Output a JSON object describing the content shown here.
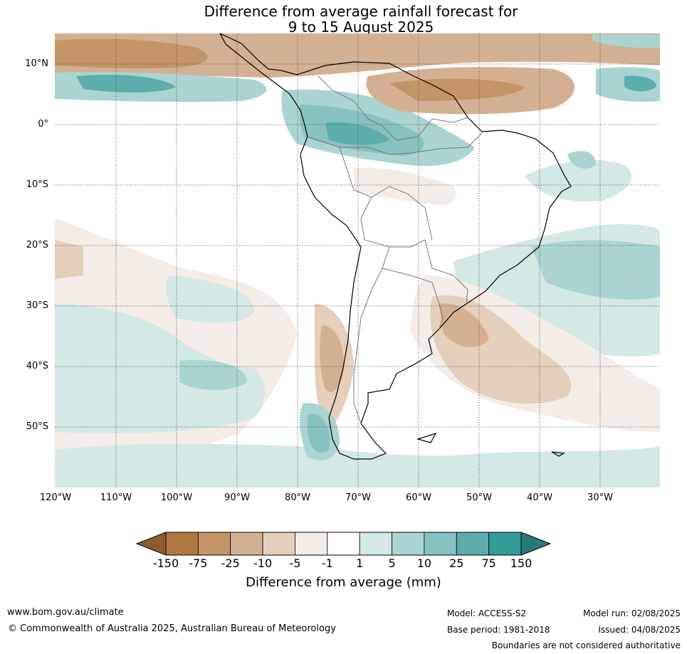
{
  "title": {
    "line1": "Difference from average rainfall forecast for",
    "line2": "9 to 15 August 2025"
  },
  "map": {
    "latitude_labels": [
      "10°N",
      "0°",
      "10°S",
      "20°S",
      "30°S",
      "40°S",
      "50°S"
    ],
    "longitude_labels": [
      "120°W",
      "110°W",
      "100°W",
      "90°W",
      "80°W",
      "70°W",
      "60°W",
      "50°W",
      "40°W",
      "30°W"
    ],
    "region": "South America and surrounding oceans"
  },
  "colorbar": {
    "label": "Difference from average (mm)",
    "ticks": [
      "-150",
      "-75",
      "-25",
      "-10",
      "-5",
      "-1",
      "1",
      "5",
      "10",
      "25",
      "75",
      "150"
    ],
    "colors": [
      "#b07840",
      "#c39466",
      "#d4b092",
      "#e3cfbb",
      "#f4ece7",
      "#ffffff",
      "#d4e8e6",
      "#a9d4d1",
      "#86c2bf",
      "#5cadab",
      "#329b97"
    ],
    "extend_low_color": "#8e5c2c",
    "extend_high_color": "#287a77"
  },
  "footer": {
    "website": "www.bom.gov.au/climate",
    "copyright": "© Commonwealth of Australia 2025, Australian Bureau of Meteorology",
    "model": "Model: ACCESS-S2",
    "base_period": "Base period: 1981-2018",
    "model_run": "Model run: 02/08/2025",
    "issued": "Issued: 04/08/2025",
    "disclaimer": "Boundaries are not considered authoritative"
  }
}
